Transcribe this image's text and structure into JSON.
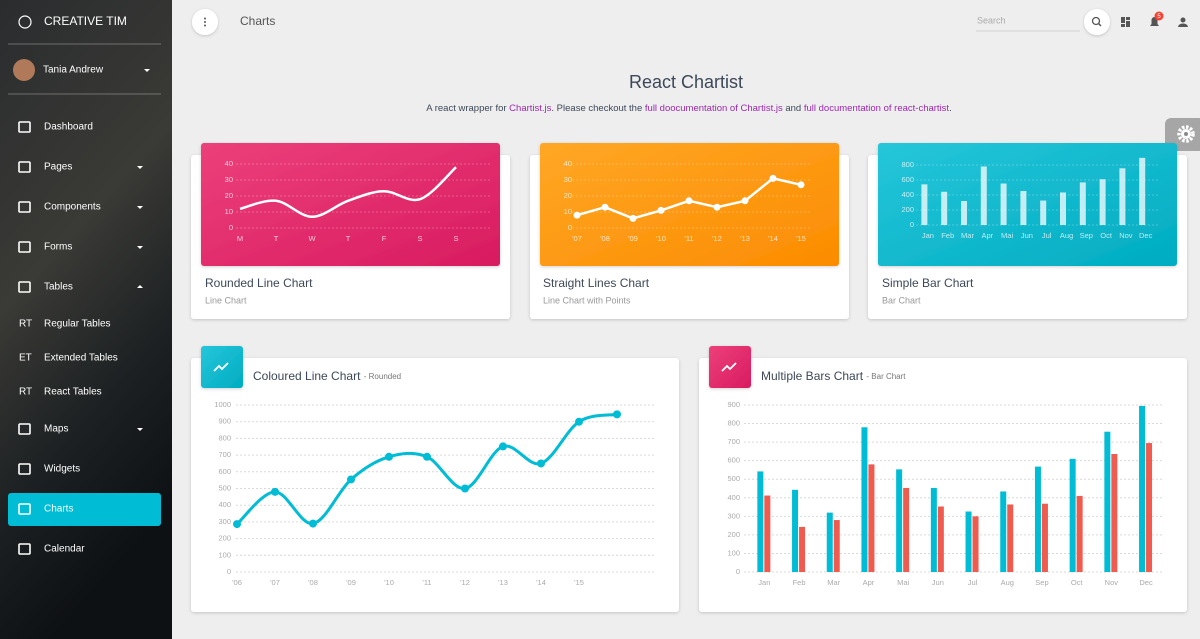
{
  "sidebar": {
    "brand": "CREATIVE TIM",
    "user": "Tania Andrew",
    "items": [
      {
        "label": "Dashboard"
      },
      {
        "label": "Pages"
      },
      {
        "label": "Components"
      },
      {
        "label": "Forms"
      },
      {
        "label": "Tables"
      },
      {
        "abbr": "RT",
        "label": "Regular Tables"
      },
      {
        "abbr": "ET",
        "label": "Extended Tables"
      },
      {
        "abbr": "RT",
        "label": "React Tables"
      },
      {
        "label": "Maps"
      },
      {
        "label": "Widgets"
      },
      {
        "label": "Charts",
        "active": true
      },
      {
        "label": "Calendar"
      }
    ]
  },
  "navbar": {
    "title": "Charts",
    "search_placeholder": "Search",
    "notifications": 5
  },
  "page": {
    "title": "React Chartist",
    "description": [
      {
        "text": "A react wrapper for "
      },
      {
        "text": "Chartist.js",
        "link": true
      },
      {
        "text": ". Please checkout the "
      },
      {
        "text": "full doocumentation of Chartist.js",
        "link": true
      },
      {
        "text": " and "
      },
      {
        "text": "full documentation of react-chartist",
        "link": true
      },
      {
        "text": "."
      }
    ]
  },
  "chart_data": [
    {
      "type": "line",
      "title": "Rounded Line Chart",
      "subtitle": "Line Chart",
      "smooth": true,
      "points": false,
      "color": "#ffffff",
      "categories": [
        "M",
        "T",
        "W",
        "T",
        "F",
        "S",
        "S"
      ],
      "values": [
        12,
        17,
        7,
        17,
        23,
        18,
        38
      ],
      "ylim": [
        0,
        50
      ],
      "yticks": [
        0,
        10,
        20,
        30,
        40
      ],
      "grid": true
    },
    {
      "type": "line",
      "title": "Straight Lines Chart",
      "subtitle": "Line Chart with Points",
      "smooth": false,
      "points": true,
      "color": "#ffffff",
      "categories": [
        "'07",
        "'08",
        "'09",
        "'10",
        "'11",
        "'12",
        "'13",
        "'14",
        "'15"
      ],
      "values": [
        8,
        13,
        6,
        11,
        17,
        13,
        17,
        31,
        27
      ],
      "ylim": [
        0,
        45
      ],
      "yticks": [
        0,
        10,
        20,
        30,
        40
      ],
      "grid": true
    },
    {
      "type": "bar",
      "title": "Simple Bar Chart",
      "subtitle": "Bar Chart",
      "color": "#ffffff",
      "categories": [
        "Jan",
        "Feb",
        "Mar",
        "Apr",
        "Mai",
        "Jun",
        "Jul",
        "Aug",
        "Sep",
        "Oct",
        "Nov",
        "Dec"
      ],
      "values": [
        542,
        443,
        320,
        780,
        553,
        453,
        326,
        434,
        568,
        610,
        756,
        895
      ],
      "ylim": [
        0,
        950
      ],
      "yticks": [
        0,
        200,
        400,
        600,
        800
      ],
      "grid": true
    },
    {
      "type": "line",
      "title": "Coloured Line Chart",
      "subtitle": "- Rounded",
      "smooth": true,
      "points": true,
      "color": "#00bcd4",
      "categories": [
        "'06",
        "'07",
        "'08",
        "'09",
        "'10",
        "'11",
        "'12",
        "'13",
        "'14",
        "'15",
        null
      ],
      "values": [
        287,
        480,
        290,
        554,
        690,
        690,
        500,
        752,
        650,
        900,
        944
      ],
      "ylim": [
        0,
        1000
      ],
      "yticks": [
        0,
        100,
        200,
        300,
        400,
        500,
        600,
        700,
        800,
        900,
        1000
      ],
      "grid": true
    },
    {
      "type": "bar",
      "title": "Multiple Bars Chart",
      "subtitle": "- Bar Chart",
      "categories": [
        "Jan",
        "Feb",
        "Mar",
        "Apr",
        "Mai",
        "Jun",
        "Jul",
        "Aug",
        "Sep",
        "Oct",
        "Nov",
        "Dec"
      ],
      "series": [
        {
          "color": "#00bcd4",
          "values": [
            542,
            443,
            320,
            780,
            553,
            453,
            326,
            434,
            568,
            610,
            756,
            895
          ]
        },
        {
          "color": "#f05b4f",
          "values": [
            412,
            243,
            280,
            580,
            453,
            353,
            300,
            364,
            368,
            410,
            636,
            695
          ]
        }
      ],
      "ylim": [
        0,
        900
      ],
      "yticks": [
        0,
        100,
        200,
        300,
        400,
        500,
        600,
        700,
        800,
        900
      ],
      "grid": true
    }
  ]
}
